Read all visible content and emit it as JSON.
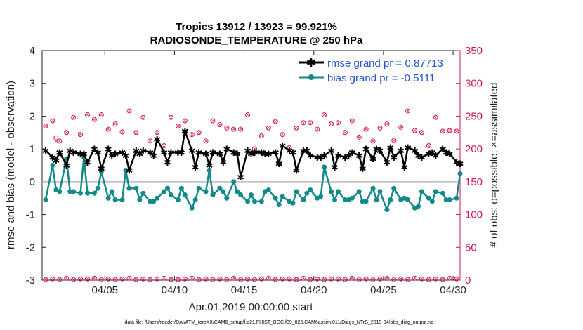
{
  "chart_data": {
    "type": "line",
    "title_line1": "Tropics 13912 / 13923 = 99.921%",
    "title_line2": "RADIOSONDE_TEMPERATURE @ 250 hPa",
    "ylabel_left": "rmse and bias (model - observation)",
    "ylabel_right": "# of obs: o=possible; ×=assimilated",
    "xlabel": "Apr.01,2019 00:00:00 start",
    "footnote": "data file: /Users/raeder/DAI/ATM_forcXX/CAM6_setup/f.e21.FHIST_BGC.f09_025.CAM6assim.011/Diags_NTrS_2019-04/obs_diag_output.nc",
    "ylim_left": [
      -3,
      4
    ],
    "ylim_right": [
      0,
      350
    ],
    "xlim": [
      0.5,
      30.5
    ],
    "yticks_left": [
      "-3",
      "-2",
      "-1",
      "0",
      "1",
      "2",
      "3",
      "4"
    ],
    "yticks_right": [
      "0",
      "50",
      "100",
      "150",
      "200",
      "250",
      "300",
      "350"
    ],
    "xticks": [
      {
        "value": 5,
        "label": "04/05"
      },
      {
        "value": 10,
        "label": "04/10"
      },
      {
        "value": 15,
        "label": "04/15"
      },
      {
        "value": 20,
        "label": "04/20"
      },
      {
        "value": 25,
        "label": "04/25"
      },
      {
        "value": 30,
        "label": "04/30"
      }
    ],
    "legend": [
      "rmse grand pr = 0.87713",
      "bias grand pr = -0.5111"
    ],
    "colors": {
      "rmse": "#000000",
      "bias": "#138a8a",
      "obs": "#d4145a",
      "zero": "#bbbbbb"
    },
    "series": [
      {
        "name": "rmse",
        "x": [
          0.75,
          1.25,
          1.5,
          1.75,
          2.25,
          2.5,
          2.75,
          3.25,
          3.5,
          3.75,
          4.25,
          4.5,
          4.75,
          5.25,
          5.5,
          5.75,
          6.25,
          6.5,
          6.75,
          7.25,
          7.5,
          7.75,
          8.25,
          8.5,
          8.75,
          9.25,
          9.5,
          9.75,
          10.25,
          10.5,
          10.75,
          11.25,
          11.5,
          11.75,
          12.25,
          12.5,
          12.75,
          13.25,
          13.5,
          13.75,
          14.25,
          14.5,
          14.75,
          15.25,
          15.5,
          15.75,
          16.25,
          16.5,
          16.75,
          17.25,
          17.5,
          17.75,
          18.25,
          18.5,
          18.75,
          19.25,
          19.5,
          19.75,
          20.25,
          20.5,
          20.75,
          21.25,
          21.5,
          21.75,
          22.25,
          22.5,
          22.75,
          23.25,
          23.5,
          23.75,
          24.25,
          24.5,
          24.75,
          25.25,
          25.5,
          25.75,
          26.25,
          26.5,
          26.75,
          27.25,
          27.5,
          27.75,
          28.25,
          28.5,
          28.75,
          29.25,
          29.5,
          29.75,
          30.25,
          30.5
        ],
        "values": [
          0.95,
          0.75,
          0.65,
          0.9,
          0.5,
          0.95,
          0.9,
          0.85,
          0.85,
          0.6,
          1.0,
          0.9,
          0.4,
          1.0,
          0.8,
          0.85,
          0.9,
          0.8,
          0.35,
          0.95,
          0.85,
          0.95,
          0.9,
          0.8,
          1.3,
          0.9,
          0.6,
          0.9,
          0.9,
          0.9,
          1.55,
          0.95,
          0.45,
          0.9,
          0.85,
          0.5,
          0.9,
          0.85,
          0.6,
          1.0,
          0.9,
          0.85,
          0.15,
          0.95,
          0.85,
          0.9,
          0.9,
          0.85,
          0.85,
          0.9,
          0.55,
          1.1,
          0.95,
          0.9,
          0.35,
          0.95,
          0.95,
          0.8,
          0.75,
          0.75,
          0.8,
          0.95,
          0.45,
          0.8,
          0.75,
          0.8,
          0.9,
          0.8,
          0.4,
          1.0,
          0.7,
          1.0,
          0.95,
          0.6,
          1.05,
          0.75,
          0.95,
          0.45,
          1.05,
          0.95,
          0.8,
          0.75,
          0.85,
          0.9,
          0.8,
          1.0,
          0.9,
          0.85,
          0.6,
          0.55
        ]
      },
      {
        "name": "bias",
        "x": [
          0.75,
          1.25,
          1.5,
          1.75,
          2.25,
          2.5,
          2.75,
          3.25,
          3.5,
          3.75,
          4.25,
          4.5,
          4.75,
          5.25,
          5.5,
          5.75,
          6.25,
          6.5,
          6.75,
          7.25,
          7.5,
          7.75,
          8.25,
          8.5,
          8.75,
          9.25,
          9.5,
          9.75,
          10.25,
          10.5,
          10.75,
          11.25,
          11.5,
          11.75,
          12.25,
          12.5,
          12.75,
          13.25,
          13.5,
          13.75,
          14.25,
          14.5,
          14.75,
          15.25,
          15.5,
          15.75,
          16.25,
          16.5,
          16.75,
          17.25,
          17.5,
          17.75,
          18.25,
          18.5,
          18.75,
          19.25,
          19.5,
          19.75,
          20.25,
          20.5,
          20.75,
          21.25,
          21.5,
          21.75,
          22.25,
          22.5,
          22.75,
          23.25,
          23.5,
          23.75,
          24.25,
          24.5,
          24.75,
          25.25,
          25.5,
          25.75,
          26.25,
          26.5,
          26.75,
          27.25,
          27.5,
          27.75,
          28.25,
          28.5,
          28.75,
          29.25,
          29.5,
          29.75,
          30.25,
          30.5
        ],
        "values": [
          -0.55,
          0.5,
          -0.25,
          -0.3,
          0.7,
          -0.3,
          -0.3,
          -0.35,
          0.75,
          -0.35,
          -0.35,
          -0.2,
          0.3,
          -0.5,
          -0.3,
          -0.55,
          -0.55,
          0.35,
          -0.2,
          -0.2,
          -0.55,
          -0.35,
          -0.6,
          -0.6,
          -0.5,
          -0.3,
          -0.2,
          -0.4,
          -0.55,
          -0.2,
          -0.4,
          -0.8,
          -0.55,
          -0.2,
          -0.3,
          0.35,
          -0.4,
          -0.2,
          -0.3,
          -0.5,
          0.0,
          -0.3,
          -0.4,
          -0.6,
          -0.4,
          -0.6,
          -0.6,
          -0.3,
          -0.25,
          -0.5,
          -0.7,
          -0.45,
          -0.6,
          -0.65,
          -0.3,
          -0.55,
          -0.35,
          -0.25,
          -0.5,
          -0.45,
          0.45,
          -0.3,
          -0.55,
          -0.3,
          -0.55,
          -0.55,
          -0.5,
          -0.3,
          -0.6,
          -0.6,
          -0.2,
          -0.55,
          -0.3,
          -0.85,
          -0.55,
          -0.2,
          -0.55,
          -0.5,
          -0.55,
          -0.8,
          -0.75,
          -0.3,
          -0.5,
          -0.6,
          -0.3,
          -0.35,
          -0.55,
          -0.55,
          -0.5,
          0.25
        ]
      },
      {
        "name": "obs_possible",
        "axis": "right",
        "x": [
          0.75,
          1.25,
          1.5,
          1.75,
          2.25,
          2.75,
          3.25,
          3.75,
          4.25,
          4.75,
          5.25,
          5.75,
          6.25,
          6.75,
          7.25,
          7.75,
          8.25,
          8.75,
          9.25,
          9.75,
          10.25,
          10.75,
          11.25,
          11.75,
          12.25,
          12.75,
          13.25,
          13.75,
          14.25,
          14.75,
          15.25,
          15.75,
          16.25,
          16.75,
          17.25,
          17.75,
          18.25,
          18.75,
          19.25,
          19.75,
          20.25,
          20.75,
          21.25,
          21.75,
          22.25,
          22.75,
          23.25,
          23.75,
          24.25,
          24.75,
          25.25,
          25.75,
          26.25,
          26.75,
          27.25,
          27.75,
          28.25,
          28.75,
          29.25,
          29.75,
          30.25
        ],
        "values": [
          235,
          243,
          217,
          212,
          225,
          248,
          222,
          252,
          245,
          252,
          230,
          238,
          226,
          258,
          225,
          248,
          212,
          225,
          205,
          248,
          235,
          243,
          222,
          225,
          212,
          243,
          237,
          232,
          230,
          230,
          252,
          200,
          220,
          232,
          242,
          222,
          202,
          232,
          240,
          240,
          230,
          252,
          238,
          240,
          225,
          243,
          218,
          230,
          212,
          232,
          238,
          213,
          233,
          258,
          228,
          225,
          205,
          248,
          227,
          228,
          227
        ]
      },
      {
        "name": "obs_assimilated",
        "axis": "right",
        "x": [
          0.75,
          1.25,
          1.5,
          1.75,
          2.25,
          2.75,
          3.25,
          3.75,
          4.25,
          4.75,
          5.25,
          5.75,
          6.25,
          6.75,
          7.25,
          7.75,
          8.25,
          8.75,
          9.25,
          9.75,
          10.25,
          10.75,
          11.25,
          11.75,
          12.25,
          12.75,
          13.25,
          13.75,
          14.25,
          14.75,
          15.25,
          15.75,
          16.25,
          16.75,
          17.25,
          17.75,
          18.25,
          18.75,
          19.25,
          19.75,
          20.25,
          20.75,
          21.25,
          21.75,
          22.25,
          22.75,
          23.25,
          23.75,
          24.25,
          24.75,
          25.25,
          25.75,
          26.25,
          26.75,
          27.25,
          27.75,
          28.25,
          28.75,
          29.25,
          29.75,
          30.25
        ],
        "values": [
          235,
          243,
          212,
          212,
          225,
          248,
          222,
          252,
          245,
          252,
          230,
          238,
          226,
          258,
          225,
          248,
          212,
          225,
          205,
          248,
          235,
          243,
          222,
          225,
          212,
          243,
          237,
          232,
          230,
          230,
          252,
          200,
          220,
          232,
          242,
          222,
          202,
          232,
          240,
          240,
          230,
          252,
          238,
          240,
          225,
          243,
          218,
          230,
          212,
          232,
          238,
          213,
          233,
          258,
          228,
          225,
          205,
          248,
          227,
          228,
          227
        ]
      },
      {
        "name": "obs_bottom",
        "axis": "right",
        "x": [
          0.75,
          1.25,
          1.75,
          2.25,
          2.75,
          3.25,
          3.75,
          4.25,
          4.75,
          5.25,
          5.75,
          6.25,
          6.75,
          7.25,
          7.75,
          8.25,
          8.75,
          9.25,
          9.75,
          10.25,
          10.75,
          11.25,
          11.75,
          12.25,
          12.75,
          13.25,
          13.75,
          14.25,
          14.75,
          15.25,
          15.75,
          16.25,
          16.75,
          17.25,
          17.75,
          18.25,
          18.75,
          19.25,
          19.75,
          20.25,
          20.75,
          21.25,
          21.75,
          22.25,
          22.75,
          23.25,
          23.75,
          24.25,
          24.75,
          25.25,
          25.75,
          26.25,
          26.75,
          27.25,
          27.75,
          28.25,
          28.75,
          29.25,
          29.75,
          30.25
        ],
        "values": [
          1,
          2,
          1,
          3,
          1,
          2,
          2,
          3,
          1,
          2,
          1,
          2,
          3,
          1,
          2,
          1,
          2,
          3,
          1,
          1,
          2,
          3,
          1,
          2,
          1,
          2,
          1,
          3,
          1,
          2,
          1,
          2,
          3,
          1,
          2,
          2,
          1,
          3,
          1,
          2,
          1,
          2,
          2,
          1,
          3,
          1,
          2,
          1,
          2,
          3,
          1,
          2,
          1,
          3,
          2,
          1,
          2,
          1,
          3,
          2
        ]
      }
    ]
  }
}
